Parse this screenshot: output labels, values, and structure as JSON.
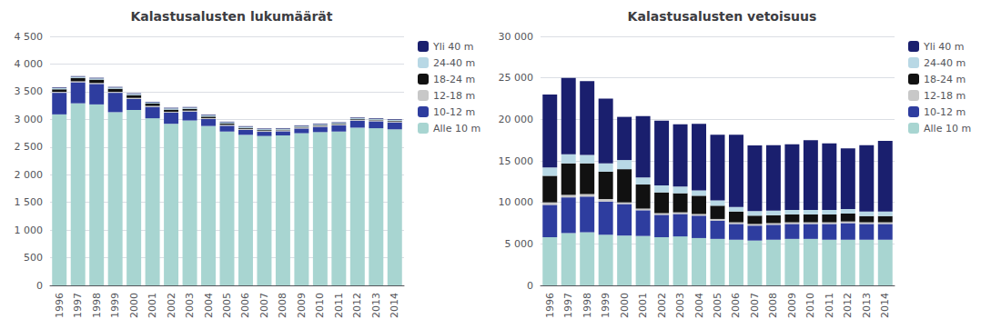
{
  "chart_data": [
    {
      "type": "bar",
      "stacked": true,
      "grid": true,
      "legend": "right",
      "title": "Kalastusalusten lukumäärät",
      "categories": [
        "1996",
        "1997",
        "1998",
        "1999",
        "2000",
        "2001",
        "2002",
        "2003",
        "2004",
        "2005",
        "2006",
        "2007",
        "2008",
        "2009",
        "2010",
        "2011",
        "2012",
        "2013",
        "2014"
      ],
      "ylim": [
        0,
        4500
      ],
      "yticks": [
        0,
        500,
        {
          "value": 1000,
          "label": "1 000"
        },
        {
          "value": 1500,
          "label": "1 500"
        },
        {
          "value": 2000,
          "label": "2 000"
        },
        {
          "value": 2500,
          "label": "2 500"
        },
        {
          "value": 3000,
          "label": "3 000"
        },
        {
          "value": 3500,
          "label": "3 500"
        },
        {
          "value": 4000,
          "label": "4 000"
        },
        {
          "value": 4500,
          "label": "4 500"
        }
      ],
      "series": [
        {
          "name": "Alle 10 m",
          "color": "#a8d5d1",
          "values": [
            3090,
            3290,
            3270,
            3130,
            3170,
            3020,
            2920,
            2980,
            2880,
            2780,
            2720,
            2700,
            2710,
            2750,
            2770,
            2780,
            2850,
            2840,
            2820
          ]
        },
        {
          "name": "10-12 m",
          "color": "#2e3d9f",
          "values": [
            390,
            380,
            370,
            350,
            200,
            205,
            200,
            160,
            125,
            105,
            90,
            75,
            75,
            85,
            95,
            110,
            125,
            125,
            125
          ]
        },
        {
          "name": "12-18 m",
          "color": "#c8c8c8",
          "values": [
            18,
            18,
            18,
            18,
            18,
            18,
            18,
            18,
            18,
            18,
            18,
            18,
            18,
            18,
            18,
            18,
            18,
            18,
            18
          ]
        },
        {
          "name": "18-24 m",
          "color": "#111111",
          "values": [
            45,
            60,
            60,
            55,
            50,
            42,
            38,
            32,
            27,
            22,
            16,
            13,
            11,
            11,
            11,
            11,
            11,
            11,
            11
          ]
        },
        {
          "name": "24-40 m",
          "color": "#b8d8e5",
          "values": [
            22,
            22,
            22,
            22,
            22,
            22,
            22,
            22,
            22,
            22,
            22,
            17,
            17,
            17,
            17,
            17,
            17,
            17,
            17
          ]
        },
        {
          "name": "Yli 40 m",
          "color": "#1a1f6e",
          "values": [
            11,
            11,
            11,
            11,
            11,
            11,
            11,
            11,
            11,
            11,
            11,
            11,
            11,
            11,
            11,
            11,
            11,
            11,
            11
          ]
        }
      ]
    },
    {
      "type": "bar",
      "stacked": true,
      "grid": true,
      "legend": "right",
      "title": "Kalastusalusten vetoisuus",
      "categories": [
        "1996",
        "1997",
        "1998",
        "1999",
        "2000",
        "2001",
        "2002",
        "2003",
        "2004",
        "2005",
        "2006",
        "2007",
        "2008",
        "2009",
        "2010",
        "2011",
        "2012",
        "2013",
        "2014"
      ],
      "ylim": [
        0,
        30000
      ],
      "yticks": [
        0,
        {
          "value": 5000,
          "label": "5 000"
        },
        {
          "value": 10000,
          "label": "10 000"
        },
        {
          "value": 15000,
          "label": "15 000"
        },
        {
          "value": 20000,
          "label": "20 000"
        },
        {
          "value": 25000,
          "label": "25 000"
        },
        {
          "value": 30000,
          "label": "30 000"
        }
      ],
      "series": [
        {
          "name": "Alle 10 m",
          "color": "#a8d5d1",
          "values": [
            5800,
            6300,
            6400,
            6100,
            6000,
            5950,
            5800,
            5900,
            5700,
            5600,
            5500,
            5400,
            5500,
            5600,
            5600,
            5500,
            5500,
            5500,
            5500
          ]
        },
        {
          "name": "10-12 m",
          "color": "#2e3d9f",
          "values": [
            3900,
            4300,
            4300,
            4000,
            3800,
            3100,
            2700,
            2700,
            2700,
            2200,
            1900,
            1800,
            1800,
            1800,
            1800,
            1900,
            2000,
            1900,
            1900
          ]
        },
        {
          "name": "12-18 m",
          "color": "#c8c8c8",
          "values": [
            300,
            300,
            300,
            300,
            200,
            200,
            200,
            200,
            200,
            200,
            200,
            200,
            200,
            200,
            200,
            200,
            200,
            200,
            200
          ]
        },
        {
          "name": "18-24 m",
          "color": "#111111",
          "values": [
            3200,
            3800,
            3700,
            3300,
            4000,
            2900,
            2500,
            2300,
            2200,
            1600,
            1300,
            1000,
            950,
            950,
            950,
            950,
            950,
            750,
            750
          ]
        },
        {
          "name": "24-40 m",
          "color": "#b8d8e5",
          "values": [
            1000,
            1100,
            1000,
            1000,
            1100,
            850,
            850,
            800,
            650,
            650,
            550,
            550,
            550,
            550,
            550,
            550,
            550,
            550,
            550
          ]
        },
        {
          "name": "Yli 40 m",
          "color": "#1a1f6e",
          "values": [
            8800,
            9200,
            8900,
            7800,
            5200,
            7400,
            7800,
            7500,
            8000,
            7900,
            8700,
            7900,
            7900,
            7900,
            8400,
            8000,
            7300,
            8000,
            8500
          ]
        }
      ]
    }
  ]
}
